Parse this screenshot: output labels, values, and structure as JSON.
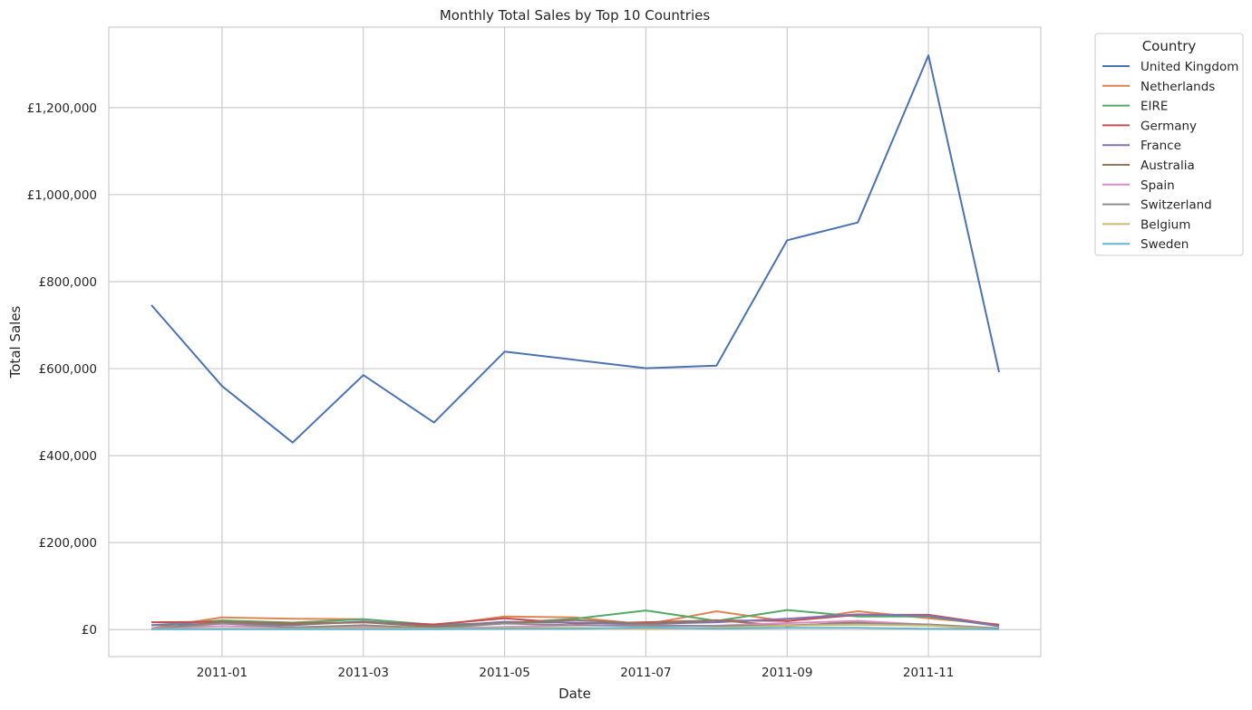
{
  "chart_data": {
    "type": "line",
    "title": "Monthly Total Sales by Top 10 Countries",
    "xlabel": "Date",
    "ylabel": "Total Sales",
    "x": [
      "2010-12",
      "2011-01",
      "2011-02",
      "2011-03",
      "2011-04",
      "2011-05",
      "2011-06",
      "2011-07",
      "2011-08",
      "2011-09",
      "2011-10",
      "2011-11",
      "2011-12"
    ],
    "x_ticks": [
      "2011-01",
      "2011-03",
      "2011-05",
      "2011-07",
      "2011-09",
      "2011-11"
    ],
    "y_ticks": [
      0,
      200000,
      400000,
      600000,
      800000,
      1000000,
      1200000
    ],
    "y_tick_labels": [
      "£0",
      "£200,000",
      "£400,000",
      "£600,000",
      "£800,000",
      "£1,000,000",
      "£1,200,000"
    ],
    "ylim": [
      -62000,
      1385000
    ],
    "grid": true,
    "legend": {
      "title": "Country",
      "placement": "outside-top-right"
    },
    "series": [
      {
        "name": "United Kingdom",
        "color": "#4c72b0",
        "values": [
          746000,
          560000,
          430000,
          585000,
          476000,
          639000,
          620000,
          601000,
          607000,
          895000,
          936000,
          1320000,
          592000
        ]
      },
      {
        "name": "Netherlands",
        "color": "#dd8452",
        "values": [
          3000,
          28000,
          25000,
          24000,
          9000,
          30000,
          28000,
          12000,
          42000,
          19000,
          42000,
          26000,
          12000
        ]
      },
      {
        "name": "EIRE",
        "color": "#55a868",
        "values": [
          10000,
          21000,
          16000,
          24000,
          11000,
          15000,
          25000,
          44000,
          20000,
          45000,
          30000,
          30000,
          8000
        ]
      },
      {
        "name": "Germany",
        "color": "#c44e52",
        "values": [
          17000,
          18000,
          14000,
          17000,
          12000,
          26000,
          14000,
          17000,
          21000,
          20000,
          34000,
          34000,
          10000
        ]
      },
      {
        "name": "France",
        "color": "#8172b3",
        "values": [
          10000,
          14000,
          10000,
          19000,
          7000,
          18000,
          16000,
          13000,
          17000,
          25000,
          35000,
          32000,
          8000
        ]
      },
      {
        "name": "Australia",
        "color": "#937860",
        "values": [
          1000,
          18000,
          12000,
          17000,
          6000,
          15000,
          22000,
          14000,
          22000,
          8000,
          18000,
          10000,
          2000
        ]
      },
      {
        "name": "Spain",
        "color": "#da8bc3",
        "values": [
          3000,
          8000,
          5000,
          6000,
          3000,
          6000,
          10000,
          8000,
          9000,
          15000,
          20000,
          11000,
          2000
        ]
      },
      {
        "name": "Switzerland",
        "color": "#8c8c8c",
        "values": [
          2000,
          14000,
          5000,
          10000,
          3000,
          14000,
          10000,
          10000,
          8000,
          10000,
          14000,
          12000,
          3000
        ]
      },
      {
        "name": "Belgium",
        "color": "#ccb974",
        "values": [
          2000,
          2000,
          2000,
          3000,
          2000,
          4000,
          4000,
          2000,
          4000,
          9000,
          11000,
          9000,
          1000
        ]
      },
      {
        "name": "Sweden",
        "color": "#64b5cd",
        "values": [
          1000,
          1000,
          1000,
          1000,
          1000,
          2000,
          2000,
          5000,
          2000,
          4000,
          4000,
          2000,
          1000
        ]
      }
    ]
  }
}
